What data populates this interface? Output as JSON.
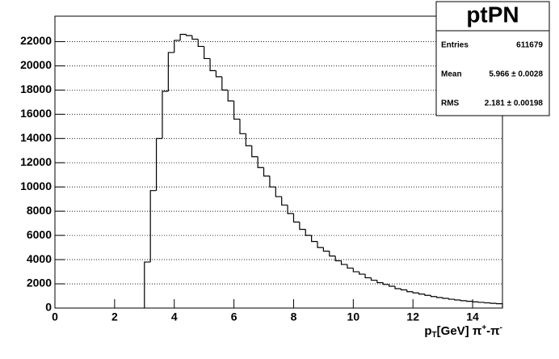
{
  "chart_data": {
    "type": "histogram",
    "bins": [
      3.0,
      3.2,
      3.4,
      3.6,
      3.8,
      4.0,
      4.2,
      4.4,
      4.6,
      4.8,
      5.0,
      5.2,
      5.4,
      5.6,
      5.8,
      6.0,
      6.2,
      6.4,
      6.6,
      6.8,
      7.0,
      7.2,
      7.4,
      7.6,
      7.8,
      8.0,
      8.2,
      8.4,
      8.6,
      8.8,
      9.0,
      9.2,
      9.4,
      9.6,
      9.8,
      10.0,
      10.2,
      10.4,
      10.6,
      10.8,
      11.0,
      11.2,
      11.4,
      11.6,
      11.8,
      12.0,
      12.2,
      12.4,
      12.6,
      12.8,
      13.0,
      13.2,
      13.4,
      13.6,
      13.8,
      14.0,
      14.2,
      14.4,
      14.6,
      14.8,
      15.0
    ],
    "values": [
      3800,
      9700,
      14000,
      17900,
      21100,
      22100,
      22600,
      22500,
      22200,
      21600,
      20600,
      19600,
      19100,
      18000,
      17100,
      15600,
      14400,
      13400,
      12500,
      11600,
      10900,
      10000,
      9200,
      8500,
      7800,
      7100,
      6500,
      6000,
      5500,
      5000,
      4700,
      4300,
      3900,
      3600,
      3300,
      3000,
      2800,
      2500,
      2300,
      2100,
      1950,
      1800,
      1600,
      1500,
      1350,
      1250,
      1150,
      1050,
      950,
      870,
      800,
      730,
      670,
      610,
      560,
      510,
      470,
      430,
      390,
      360
    ],
    "color": "#000000",
    "xlim": [
      0,
      15
    ],
    "xticks": [
      0,
      2,
      4,
      6,
      8,
      10,
      12,
      14
    ],
    "ylim": [
      0,
      24100
    ],
    "yticks": [
      0,
      2000,
      4000,
      6000,
      8000,
      10000,
      12000,
      14000,
      16000,
      18000,
      20000,
      22000
    ],
    "grid": true,
    "x_label": [
      "p",
      "T",
      "[GeV] π",
      "+",
      "-π",
      "-"
    ],
    "stats": {
      "title": "ptPN",
      "rows": [
        [
          "Entries",
          611679
        ],
        [
          "Mean",
          "5.966 ± 0.0028"
        ],
        [
          "RMS",
          "2.181 ± 0.00198"
        ]
      ]
    }
  }
}
